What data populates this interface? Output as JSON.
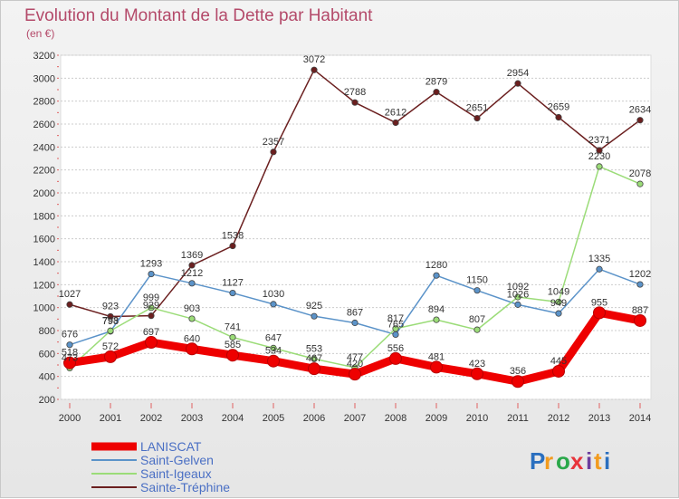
{
  "header": {
    "title": "Evolution du Montant de la Dette par Habitant",
    "unit": "(en €)"
  },
  "logo": {
    "text": "Proxiti",
    "letters": [
      "P",
      "r",
      "o",
      "x",
      "i",
      "t",
      "i"
    ],
    "colors": [
      "#2a6fbf",
      "#f29b1f",
      "#2aa84a",
      "#e8343b",
      "#6b3f9e",
      "#f29b1f",
      "#2a6fbf"
    ]
  },
  "chart_data": {
    "type": "line",
    "title": "Evolution du Montant de la Dette par Habitant",
    "subtitle": "(en €)",
    "xlabel": "",
    "ylabel": "",
    "x": [
      "2000",
      "2001",
      "2002",
      "2003",
      "2004",
      "2005",
      "2006",
      "2007",
      "2008",
      "2009",
      "2010",
      "2011",
      "2012",
      "2013",
      "2014"
    ],
    "ylim": [
      200,
      3200
    ],
    "yticks": [
      200,
      400,
      600,
      800,
      1000,
      1200,
      1400,
      1600,
      1800,
      2000,
      2200,
      2400,
      2600,
      2800,
      3000,
      3200
    ],
    "grid": "horizontal dashed",
    "legend_position": "bottom-left",
    "series": [
      {
        "name": "Sainte-Tréphine",
        "color": "#6b1f1f",
        "values": [
          1027,
          923,
          929,
          1369,
          1538,
          2357,
          3072,
          2788,
          2612,
          2879,
          2651,
          2954,
          2659,
          2371,
          2634
        ]
      },
      {
        "name": "Saint-Gelven",
        "color": "#5b93c9",
        "values": [
          676,
          793,
          1293,
          1212,
          1127,
          1030,
          925,
          867,
          765,
          1280,
          1150,
          1026,
          949,
          1335,
          1202
        ]
      },
      {
        "name": "Saint-Igeaux",
        "color": "#9bdc78",
        "values": [
          473,
          798,
          999,
          903,
          741,
          647,
          553,
          477,
          817,
          894,
          807,
          1092,
          1049,
          2230,
          2078
        ]
      },
      {
        "name": "LANISCAT",
        "color": "#ee0000",
        "values": [
          518,
          572,
          697,
          640,
          585,
          534,
          467,
          420,
          556,
          481,
          423,
          356,
          445,
          955,
          887
        ]
      }
    ]
  }
}
